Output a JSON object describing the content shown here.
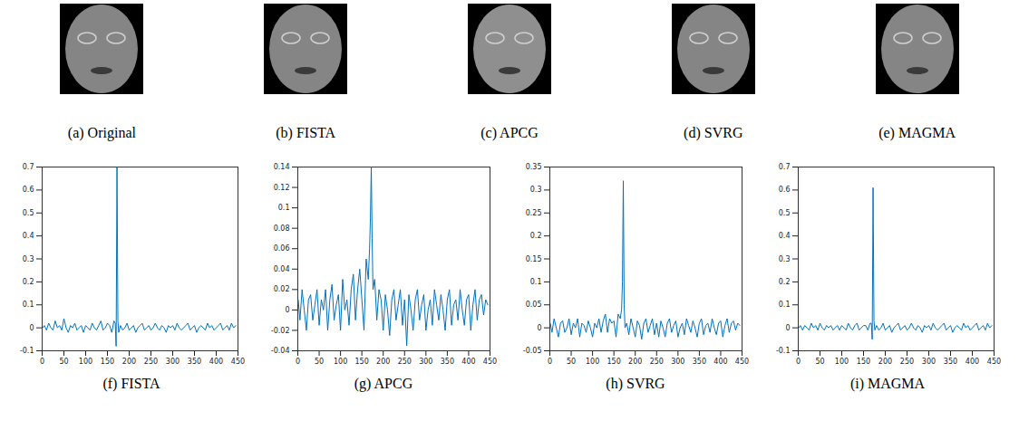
{
  "images": [
    {
      "caption": "(a) Original"
    },
    {
      "caption": "(b) FISTA"
    },
    {
      "caption": "(c) APCG"
    },
    {
      "caption": "(d) SVRG"
    },
    {
      "caption": "(e) MAGMA"
    }
  ],
  "chart_data": [
    {
      "type": "line",
      "title": "(f) FISTA",
      "color": "#0072bd",
      "x": [
        1,
        5,
        10,
        15,
        20,
        25,
        30,
        35,
        40,
        45,
        50,
        55,
        60,
        65,
        70,
        75,
        80,
        85,
        90,
        95,
        100,
        105,
        110,
        115,
        120,
        125,
        130,
        135,
        140,
        145,
        150,
        155,
        160,
        165,
        168,
        170,
        172,
        174,
        176,
        180,
        185,
        190,
        195,
        200,
        205,
        210,
        215,
        220,
        225,
        230,
        235,
        240,
        245,
        250,
        255,
        260,
        265,
        270,
        275,
        280,
        285,
        290,
        295,
        300,
        305,
        310,
        315,
        320,
        325,
        330,
        335,
        340,
        345,
        350,
        355,
        360,
        365,
        370,
        375,
        380,
        385,
        390,
        395,
        400,
        405,
        410,
        415,
        420,
        425,
        430,
        435,
        440,
        445
      ],
      "values": [
        0,
        0.01,
        -0.01,
        0.02,
        0,
        -0.01,
        0.03,
        0,
        0.01,
        -0.01,
        0.04,
        0,
        -0.02,
        0.01,
        0,
        0.02,
        -0.01,
        0,
        0.01,
        -0.02,
        0.01,
        0,
        -0.01,
        0.02,
        0,
        -0.01,
        0.01,
        0.03,
        -0.01,
        0,
        0.02,
        0.01,
        -0.02,
        0.03,
        0.02,
        -0.08,
        0.7,
        0.03,
        -0.02,
        0.01,
        -0.01,
        0,
        0.02,
        -0.01,
        0,
        0.01,
        -0.02,
        0,
        0.01,
        0.02,
        -0.01,
        0,
        0.01,
        -0.01,
        0,
        0.02,
        0,
        -0.01,
        0.01,
        0,
        -0.02,
        0.01,
        0,
        0.01,
        -0.01,
        0.02,
        0,
        -0.01,
        0,
        0.01,
        0.02,
        -0.01,
        0,
        0.01,
        -0.02,
        0,
        0.01,
        0,
        -0.01,
        0.02,
        0,
        0.01,
        -0.01,
        0,
        0.01,
        0.02,
        -0.01,
        0,
        0.01,
        -0.01,
        0.02,
        0,
        0.01
      ],
      "xlim": [
        0,
        450
      ],
      "xticks": [
        0,
        50,
        100,
        150,
        200,
        250,
        300,
        350,
        400,
        450
      ],
      "ylim": [
        -0.1,
        0.7
      ],
      "yticks": [
        -0.1,
        0,
        0.1,
        0.2,
        0.3,
        0.4,
        0.5,
        0.6,
        0.7
      ]
    },
    {
      "type": "line",
      "title": "(g) APCG",
      "color": "#0072bd",
      "x": [
        1,
        5,
        10,
        15,
        20,
        25,
        30,
        35,
        40,
        45,
        50,
        55,
        60,
        65,
        70,
        75,
        80,
        85,
        90,
        95,
        100,
        105,
        110,
        115,
        120,
        125,
        130,
        135,
        140,
        145,
        150,
        155,
        160,
        165,
        168,
        170,
        172,
        174,
        176,
        180,
        185,
        190,
        195,
        200,
        205,
        210,
        215,
        220,
        225,
        230,
        235,
        240,
        245,
        250,
        255,
        260,
        265,
        270,
        275,
        280,
        285,
        290,
        295,
        300,
        305,
        310,
        315,
        320,
        325,
        330,
        335,
        340,
        345,
        350,
        355,
        360,
        365,
        370,
        375,
        380,
        385,
        390,
        395,
        400,
        405,
        410,
        415,
        420,
        425,
        430,
        435,
        440,
        445
      ],
      "values": [
        0.01,
        -0.01,
        0.02,
        0,
        -0.02,
        0.01,
        0.015,
        -0.01,
        0.005,
        0.02,
        -0.015,
        0.01,
        0,
        0.02,
        -0.02,
        0.01,
        0.025,
        -0.01,
        0.005,
        0.015,
        -0.02,
        0.03,
        0,
        0.01,
        -0.015,
        0.02,
        0.035,
        -0.01,
        0.02,
        0.04,
        0.01,
        -0.02,
        0.05,
        0.03,
        0.06,
        0.09,
        0.14,
        0.07,
        0.02,
        0.03,
        -0.01,
        0.02,
        0.01,
        -0.02,
        0.015,
        0,
        -0.025,
        0.01,
        0.02,
        -0.01,
        0.005,
        0.02,
        -0.015,
        0.01,
        -0.035,
        0.015,
        0,
        -0.02,
        0.01,
        0.02,
        -0.01,
        0.005,
        0.015,
        -0.02,
        0,
        0.01,
        -0.015,
        0.02,
        0.005,
        -0.01,
        0.015,
        0,
        -0.02,
        0.01,
        0.02,
        -0.015,
        0.005,
        0.01,
        -0.01,
        0.02,
        0,
        -0.015,
        0.01,
        0.015,
        -0.02,
        0.005,
        0.02,
        -0.01,
        0.01,
        0.015,
        -0.005,
        0.01,
        0.005
      ],
      "xlim": [
        0,
        450
      ],
      "xticks": [
        0,
        50,
        100,
        150,
        200,
        250,
        300,
        350,
        400,
        450
      ],
      "ylim": [
        -0.04,
        0.14
      ],
      "yticks": [
        -0.04,
        -0.02,
        0,
        0.02,
        0.04,
        0.06,
        0.08,
        0.1,
        0.12,
        0.14
      ]
    },
    {
      "type": "line",
      "title": "(h) SVRG",
      "color": "#0072bd",
      "x": [
        1,
        5,
        10,
        15,
        20,
        25,
        30,
        35,
        40,
        45,
        50,
        55,
        60,
        65,
        70,
        75,
        80,
        85,
        90,
        95,
        100,
        105,
        110,
        115,
        120,
        125,
        130,
        135,
        140,
        145,
        150,
        155,
        160,
        165,
        168,
        170,
        172,
        174,
        176,
        180,
        185,
        190,
        195,
        200,
        205,
        210,
        215,
        220,
        225,
        230,
        235,
        240,
        245,
        250,
        255,
        260,
        265,
        270,
        275,
        280,
        285,
        290,
        295,
        300,
        305,
        310,
        315,
        320,
        325,
        330,
        335,
        340,
        345,
        350,
        355,
        360,
        365,
        370,
        375,
        380,
        385,
        390,
        395,
        400,
        405,
        410,
        415,
        420,
        425,
        430,
        435,
        440,
        445
      ],
      "values": [
        0.01,
        -0.01,
        0.02,
        0,
        -0.02,
        0.01,
        0.015,
        -0.01,
        0,
        0.02,
        -0.015,
        0.01,
        0,
        0.02,
        -0.02,
        0.01,
        0.005,
        -0.01,
        0.015,
        0,
        -0.02,
        0.01,
        0,
        0.02,
        -0.01,
        0.015,
        0.03,
        -0.01,
        0.02,
        0.01,
        0.015,
        -0.02,
        0.03,
        0.02,
        0.04,
        0.1,
        0.32,
        0.05,
        0,
        0.01,
        -0.015,
        0.02,
        0,
        -0.02,
        0.015,
        0.005,
        -0.025,
        0.01,
        0.02,
        -0.01,
        0.005,
        0.02,
        -0.015,
        0.01,
        -0.02,
        0.015,
        0,
        -0.02,
        0.01,
        0.02,
        -0.01,
        0.005,
        0.015,
        -0.02,
        0,
        0.01,
        -0.015,
        0.02,
        0.005,
        -0.01,
        0.015,
        0,
        -0.02,
        0.01,
        0.02,
        -0.015,
        0.005,
        0.01,
        -0.01,
        0.02,
        0,
        -0.015,
        0.01,
        0.015,
        -0.02,
        0.005,
        0.02,
        -0.01,
        0.01,
        0.015,
        -0.005,
        0.01,
        0.005
      ],
      "xlim": [
        0,
        450
      ],
      "xticks": [
        0,
        50,
        100,
        150,
        200,
        250,
        300,
        350,
        400,
        450
      ],
      "ylim": [
        -0.05,
        0.35
      ],
      "yticks": [
        -0.05,
        0,
        0.05,
        0.1,
        0.15,
        0.2,
        0.25,
        0.3,
        0.35
      ]
    },
    {
      "type": "line",
      "title": "(i) MAGMA",
      "color": "#0072bd",
      "x": [
        1,
        5,
        10,
        15,
        20,
        25,
        30,
        35,
        40,
        45,
        50,
        55,
        60,
        65,
        70,
        75,
        80,
        85,
        90,
        95,
        100,
        105,
        110,
        115,
        120,
        125,
        130,
        135,
        140,
        145,
        150,
        155,
        160,
        165,
        168,
        170,
        172,
        174,
        176,
        180,
        185,
        190,
        195,
        200,
        205,
        210,
        215,
        220,
        225,
        230,
        235,
        240,
        245,
        250,
        255,
        260,
        265,
        270,
        275,
        280,
        285,
        290,
        295,
        300,
        305,
        310,
        315,
        320,
        325,
        330,
        335,
        340,
        345,
        350,
        355,
        360,
        365,
        370,
        375,
        380,
        385,
        390,
        395,
        400,
        405,
        410,
        415,
        420,
        425,
        430,
        435,
        440,
        445
      ],
      "values": [
        0,
        0.01,
        -0.01,
        0.01,
        0,
        -0.01,
        0.02,
        0,
        0.01,
        -0.01,
        0.02,
        0,
        -0.01,
        0.01,
        0,
        0.01,
        -0.01,
        0,
        0.01,
        -0.01,
        0.01,
        0,
        -0.01,
        0.02,
        0,
        -0.01,
        0.01,
        0.02,
        -0.01,
        0,
        0.01,
        0.01,
        -0.01,
        0.02,
        0.02,
        -0.05,
        0.61,
        0.03,
        -0.01,
        0.01,
        -0.01,
        0,
        0.02,
        -0.01,
        0,
        0.01,
        -0.02,
        0,
        0.01,
        0.02,
        -0.01,
        0,
        0.01,
        -0.01,
        0,
        0.02,
        0,
        -0.01,
        0.01,
        0,
        -0.02,
        0.01,
        0,
        0.01,
        -0.01,
        0.02,
        0,
        -0.01,
        0,
        0.01,
        0.02,
        -0.01,
        0,
        0.01,
        -0.02,
        0,
        0.01,
        0,
        -0.01,
        0.02,
        0,
        0.01,
        -0.01,
        0,
        0.01,
        0.02,
        -0.01,
        0,
        0.01,
        -0.01,
        0.02,
        0,
        0.01
      ],
      "xlim": [
        0,
        450
      ],
      "xticks": [
        0,
        50,
        100,
        150,
        200,
        250,
        300,
        350,
        400,
        450
      ],
      "ylim": [
        -0.1,
        0.7
      ],
      "yticks": [
        -0.1,
        0,
        0.1,
        0.2,
        0.3,
        0.4,
        0.5,
        0.6,
        0.7
      ]
    }
  ]
}
